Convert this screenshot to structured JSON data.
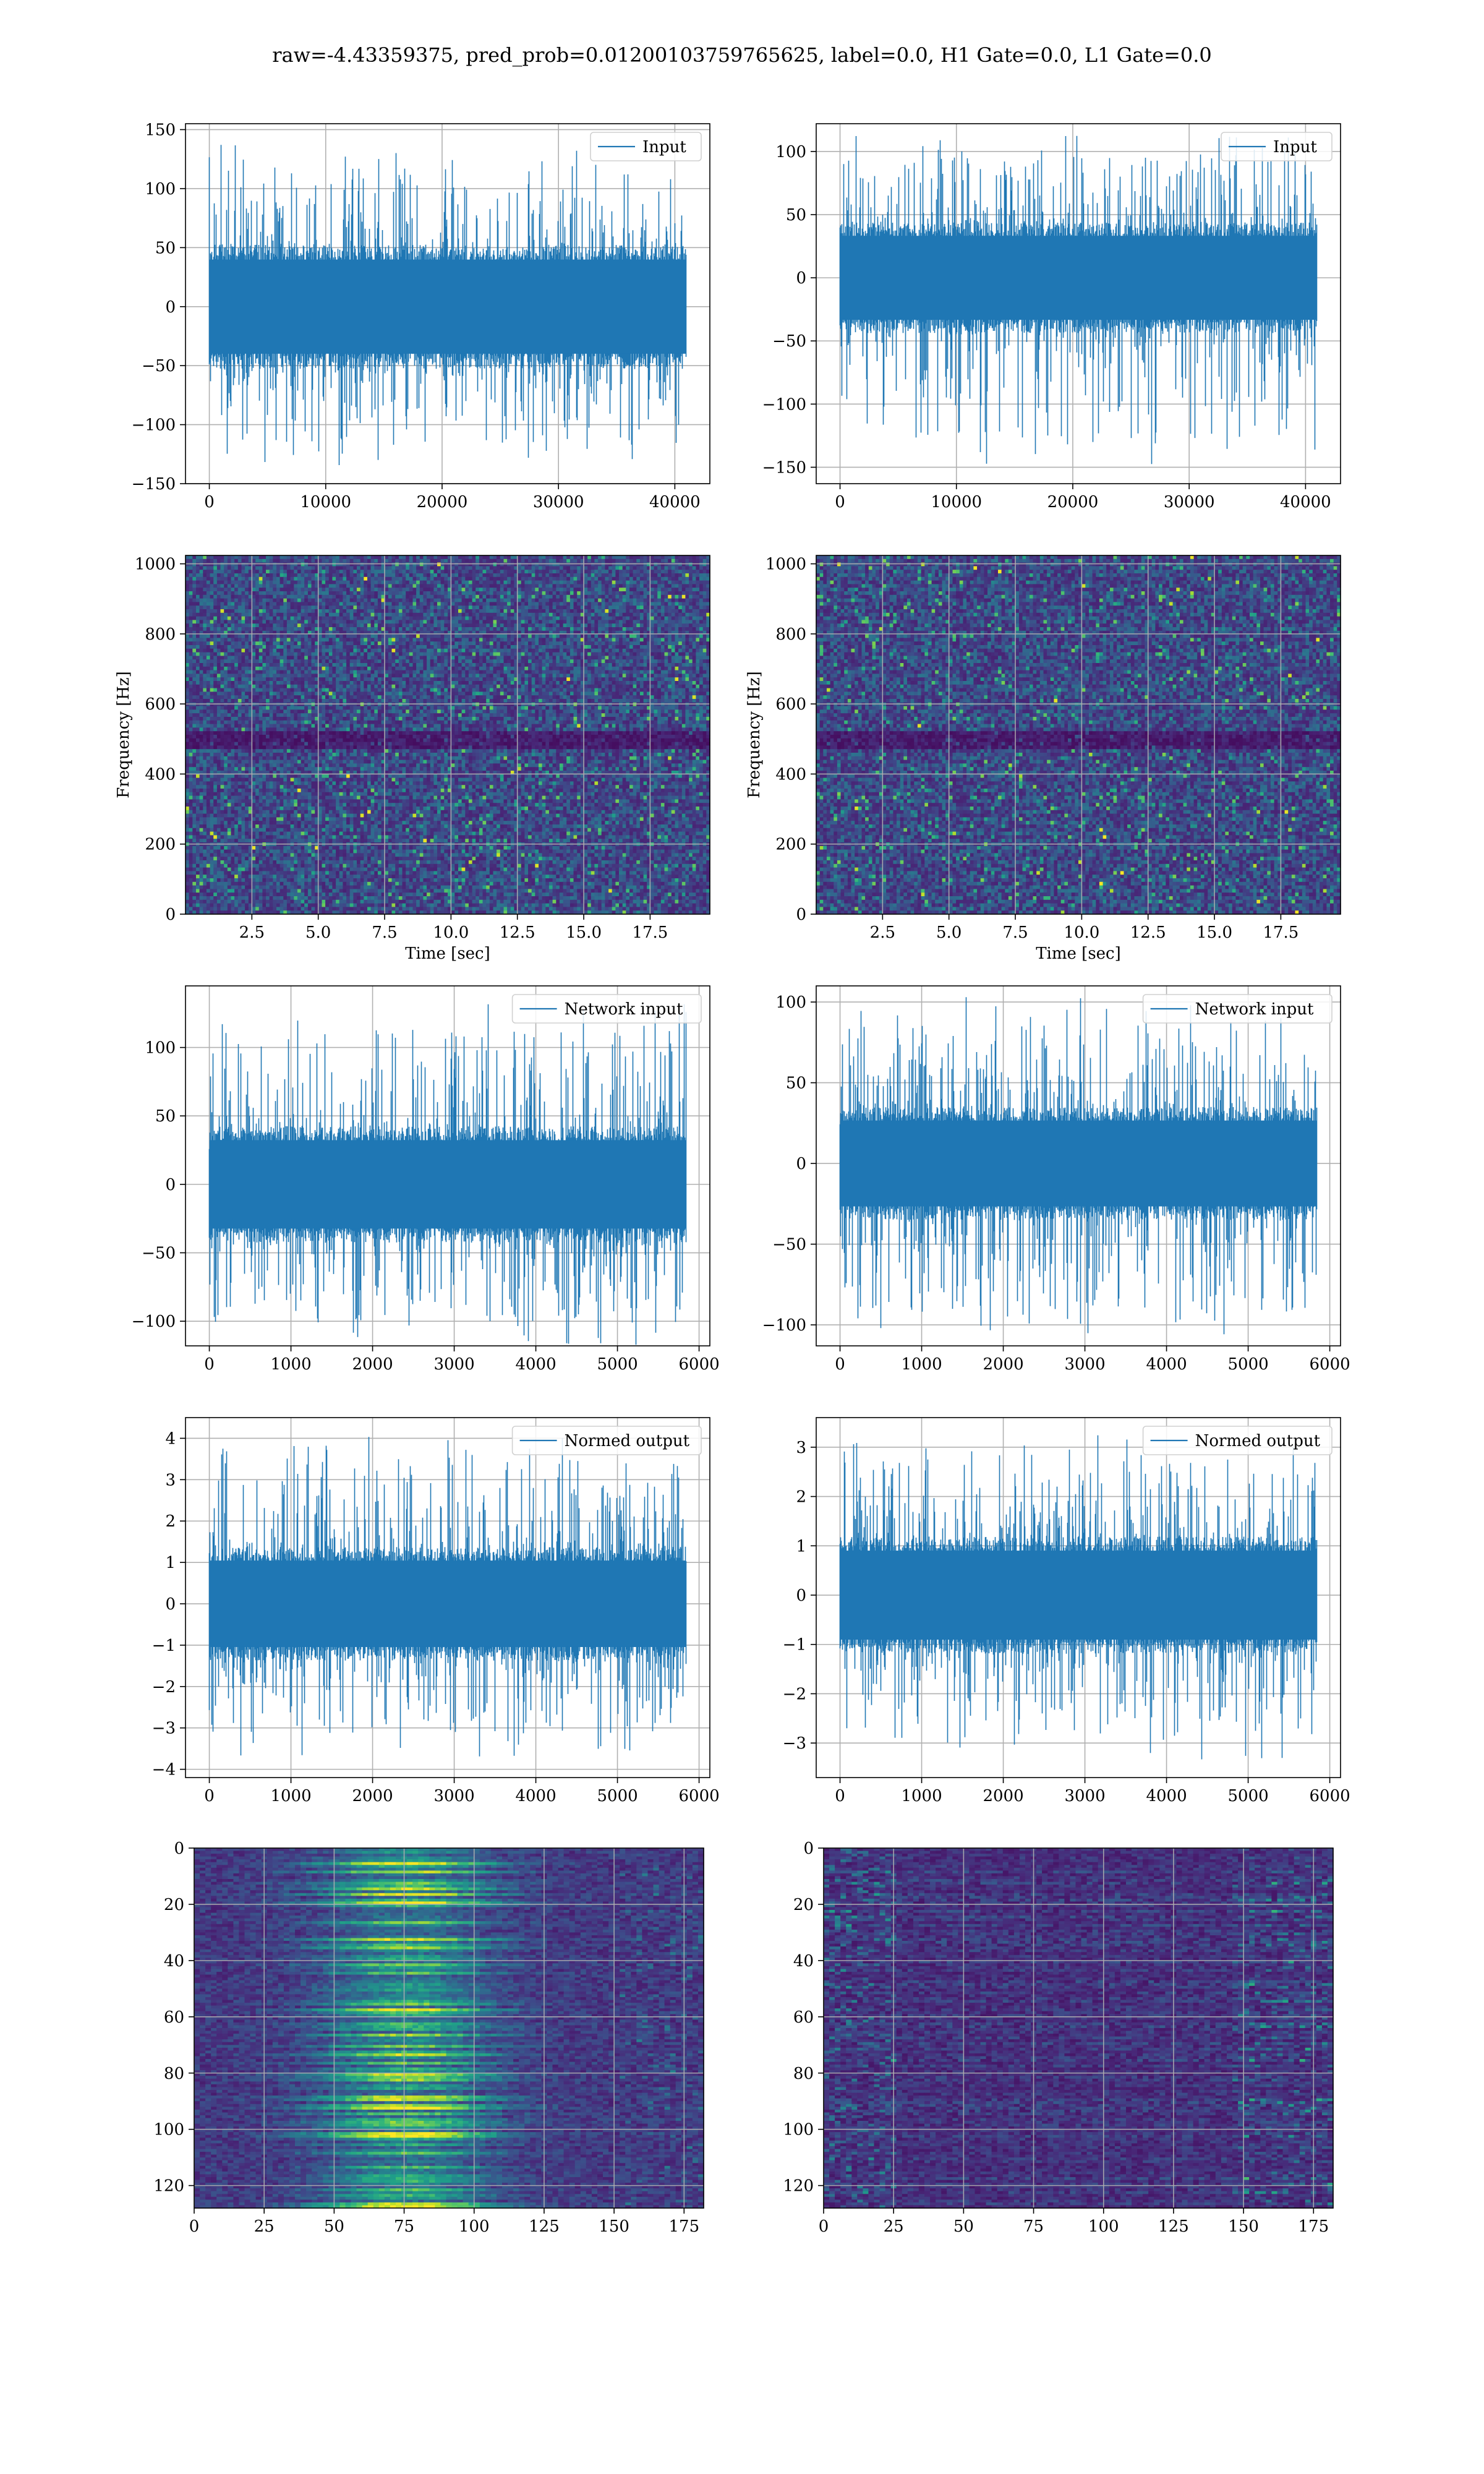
{
  "title": "raw=-4.43359375, pred_prob=0.01200103759765625, label=0.0, H1 Gate=0.0, L1 Gate=0.0",
  "colors": {
    "line": "#1f77b4",
    "grid": "#b0b0b0",
    "viridis_low": "#440154",
    "viridis_mid": "#21918c",
    "viridis_high": "#fde725"
  },
  "chart_data": [
    {
      "id": "r1c1",
      "type": "line",
      "legend": "Input",
      "legend_loc": "upper right",
      "xlim": [
        -2048,
        43008
      ],
      "ylim": [
        -150,
        155
      ],
      "xticks": [
        0,
        10000,
        20000,
        30000,
        40000
      ],
      "yticks": [
        -150,
        -100,
        -50,
        0,
        50,
        100,
        150
      ],
      "x_range": [
        0,
        40960
      ],
      "y_band": [
        -42,
        42
      ],
      "y_max": 143,
      "y_min": -136,
      "grid": true,
      "xlabel": "",
      "ylabel": ""
    },
    {
      "id": "r1c2",
      "type": "line",
      "legend": "Input",
      "legend_loc": "upper right",
      "xlim": [
        -2048,
        43008
      ],
      "ylim": [
        -163,
        122
      ],
      "xticks": [
        0,
        10000,
        20000,
        30000,
        40000
      ],
      "yticks": [
        -150,
        -100,
        -50,
        0,
        50,
        100
      ],
      "x_range": [
        0,
        40960
      ],
      "y_band": [
        -35,
        35
      ],
      "y_max": 113,
      "y_min": -151,
      "grid": true,
      "xlabel": "",
      "ylabel": ""
    },
    {
      "id": "r2c1",
      "type": "heatmap",
      "cmap": "viridis",
      "xlim": [
        0,
        19.75
      ],
      "ylim": [
        0,
        1024
      ],
      "xticks": [
        2.5,
        5.0,
        7.5,
        10.0,
        12.5,
        15.0,
        17.5
      ],
      "yticks": [
        0,
        200,
        400,
        600,
        800,
        1000
      ],
      "grid": true,
      "xlabel": "Time [sec]",
      "ylabel": "Frequency [Hz]",
      "dark_band_hz": [
        470,
        520
      ]
    },
    {
      "id": "r2c2",
      "type": "heatmap",
      "cmap": "viridis",
      "xlim": [
        0,
        19.75
      ],
      "ylim": [
        0,
        1024
      ],
      "xticks": [
        2.5,
        5.0,
        7.5,
        10.0,
        12.5,
        15.0,
        17.5
      ],
      "yticks": [
        0,
        200,
        400,
        600,
        800,
        1000
      ],
      "grid": true,
      "xlabel": "Time [sec]",
      "ylabel": "Frequency [Hz]",
      "dark_band_hz": [
        470,
        520
      ]
    },
    {
      "id": "r3c1",
      "type": "line",
      "legend": "Network input",
      "legend_loc": "upper right",
      "xlim": [
        -292,
        6132
      ],
      "ylim": [
        -118,
        145
      ],
      "xticks": [
        0,
        1000,
        2000,
        3000,
        4000,
        5000,
        6000
      ],
      "yticks": [
        -100,
        -50,
        0,
        50,
        100
      ],
      "x_range": [
        0,
        5840
      ],
      "y_band": [
        -34,
        34
      ],
      "y_max": 132,
      "y_min": -119,
      "grid": true,
      "xlabel": "",
      "ylabel": ""
    },
    {
      "id": "r3c2",
      "type": "line",
      "legend": "Network input",
      "legend_loc": "upper right",
      "xlim": [
        -292,
        6132
      ],
      "ylim": [
        -113,
        110
      ],
      "xticks": [
        0,
        1000,
        2000,
        3000,
        4000,
        5000,
        6000
      ],
      "yticks": [
        -100,
        -50,
        0,
        50,
        100
      ],
      "x_range": [
        0,
        5840
      ],
      "y_band": [
        -28,
        28
      ],
      "y_max": 103,
      "y_min": -107,
      "grid": true,
      "xlabel": "",
      "ylabel": ""
    },
    {
      "id": "r4c1",
      "type": "line",
      "legend": "Normed output",
      "legend_loc": "upper right",
      "xlim": [
        -292,
        6132
      ],
      "ylim": [
        -4.2,
        4.5
      ],
      "xticks": [
        0,
        1000,
        2000,
        3000,
        4000,
        5000,
        6000
      ],
      "yticks": [
        -4,
        -3,
        -2,
        -1,
        0,
        1,
        2,
        3,
        4
      ],
      "x_range": [
        0,
        5840
      ],
      "y_band": [
        -1.1,
        1.1
      ],
      "y_max": 4.1,
      "y_min": -3.7,
      "grid": true,
      "xlabel": "",
      "ylabel": ""
    },
    {
      "id": "r4c2",
      "type": "line",
      "legend": "Normed output",
      "legend_loc": "upper right",
      "xlim": [
        -292,
        6132
      ],
      "ylim": [
        -3.7,
        3.6
      ],
      "xticks": [
        0,
        1000,
        2000,
        3000,
        4000,
        5000,
        6000
      ],
      "yticks": [
        -3,
        -2,
        -1,
        0,
        1,
        2,
        3
      ],
      "x_range": [
        0,
        5840
      ],
      "y_band": [
        -0.95,
        0.95
      ],
      "y_max": 3.25,
      "y_min": -3.35,
      "grid": true,
      "xlabel": "",
      "ylabel": ""
    },
    {
      "id": "r5c1",
      "type": "heatmap",
      "cmap": "viridis",
      "xlim": [
        0,
        182
      ],
      "ylim": [
        128,
        0
      ],
      "xticks": [
        0,
        25,
        50,
        75,
        100,
        125,
        150,
        175
      ],
      "yticks": [
        0,
        20,
        40,
        60,
        80,
        100,
        120
      ],
      "grid": true,
      "xlabel": "",
      "ylabel": ""
    },
    {
      "id": "r5c2",
      "type": "heatmap",
      "cmap": "viridis",
      "xlim": [
        0,
        182
      ],
      "ylim": [
        128,
        0
      ],
      "xticks": [
        0,
        25,
        50,
        75,
        100,
        125,
        150,
        175
      ],
      "yticks": [
        0,
        20,
        40,
        60,
        80,
        100,
        120
      ],
      "grid": true,
      "xlabel": "",
      "ylabel": ""
    }
  ]
}
